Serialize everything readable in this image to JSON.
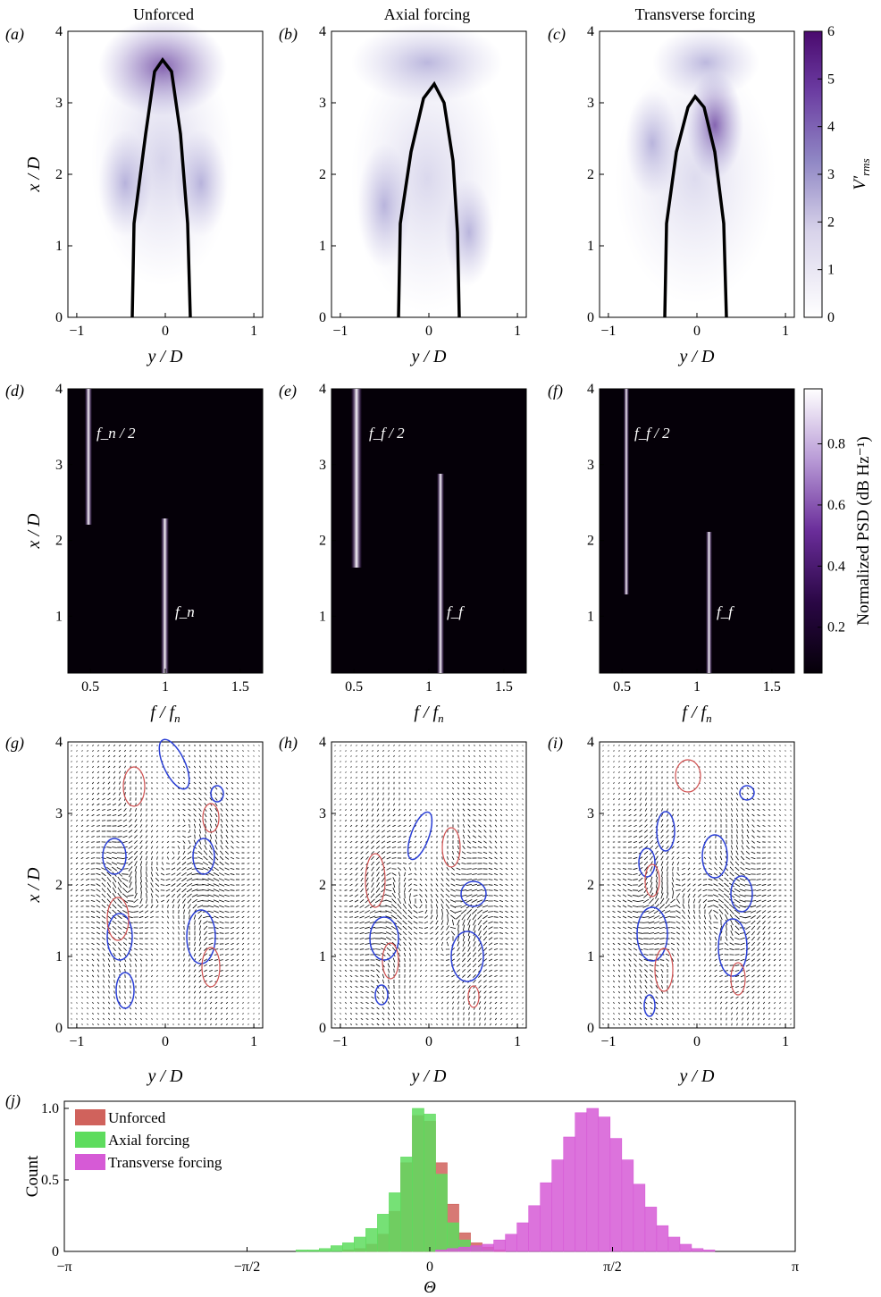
{
  "panel_letters": {
    "a": "(a)",
    "b": "(b)",
    "c": "(c)",
    "d": "(d)",
    "e": "(e)",
    "f": "(f)",
    "g": "(g)",
    "h": "(h)",
    "i": "(i)",
    "j": "(j)"
  },
  "row_titles": [
    "Unforced",
    "Axial forcing",
    "Transverse forcing"
  ],
  "labels": {
    "xD": "x / D",
    "yD": "y / D",
    "ffn": "f / f_n",
    "count": "Count",
    "theta": "Θ",
    "vrms_main": "V′",
    "vrms_sub": "rms",
    "psd": "Normalized PSD (dB Hz⁻¹)",
    "fn_half": "f_n / 2",
    "ff_half": "f_f / 2",
    "fn": "f_n",
    "ff": "f_f"
  },
  "colors": {
    "purple_max": "#4a0a6e",
    "unforced": "#d0625c",
    "axial": "#5edc5e",
    "transverse": "#d65ad6",
    "blue_contour": "#2a3fd6",
    "red_contour": "#d05050"
  },
  "chart_data": [
    {
      "panel": "a-c",
      "type": "heatmap",
      "series_titles": [
        "Unforced",
        "Axial forcing",
        "Transverse forcing"
      ],
      "xlabel": "y / D",
      "ylabel": "x / D",
      "xlim": [
        -1.1,
        1.1
      ],
      "ylim": [
        0,
        4
      ],
      "xticks": [
        -1,
        0,
        1
      ],
      "yticks": [
        0,
        1,
        2,
        3,
        4
      ],
      "colorbar": {
        "label": "V'_rms",
        "range": [
          0,
          6
        ],
        "ticks": [
          0,
          1,
          2,
          3,
          4,
          5,
          6
        ]
      },
      "contour_tip_xD": [
        3.6,
        3.3,
        3.1
      ],
      "contour_base_yD": [
        [
          -0.32,
          0.32
        ],
        [
          -0.3,
          0.35
        ],
        [
          -0.35,
          0.32
        ]
      ]
    },
    {
      "panel": "d-f",
      "type": "heatmap",
      "xlabel": "f / f_n",
      "ylabel": "x / D",
      "xlim": [
        0.35,
        1.65
      ],
      "ylim": [
        0.25,
        4
      ],
      "xticks": [
        0.5,
        1.0,
        1.5
      ],
      "yticks": [
        1,
        2,
        3,
        4
      ],
      "colorbar": {
        "label": "Normalized PSD (dB Hz^-1)",
        "ticks": [
          0.2,
          0.4,
          0.6,
          0.8
        ]
      },
      "peaks": [
        {
          "subharmonic_f": 0.5,
          "subharmonic_x_from": 2.2,
          "fundamental_f": 1.0,
          "fundamental_x_to": 2.6
        },
        {
          "subharmonic_f": 0.55,
          "subharmonic_x_from": 1.6,
          "fundamental_f": 1.1,
          "fundamental_x_to": 3.0
        },
        {
          "subharmonic_f": 0.55,
          "subharmonic_x_from": 1.2,
          "fundamental_f": 1.1,
          "fundamental_x_to": 2.0
        }
      ]
    },
    {
      "panel": "g-i",
      "type": "scatter",
      "description_free": true,
      "xlabel": "y / D",
      "ylabel": "x / D",
      "xlim": [
        -1.1,
        1.1
      ],
      "ylim": [
        0,
        4
      ],
      "xticks": [
        -1,
        0,
        1
      ],
      "yticks": [
        0,
        1,
        2,
        3,
        4
      ]
    },
    {
      "panel": "j",
      "type": "bar",
      "xlabel": "Θ",
      "ylabel": "Count",
      "xlim": [
        -3.1416,
        3.1416
      ],
      "ylim": [
        0,
        1.0
      ],
      "xtick_labels": [
        "−π",
        "−π/2",
        "0",
        "π/2",
        "π"
      ],
      "yticks": [
        0,
        0.5,
        1.0
      ],
      "legend_position": "top-left",
      "bin_centers": [
        -1.1,
        -1.0,
        -0.9,
        -0.8,
        -0.7,
        -0.6,
        -0.5,
        -0.4,
        -0.3,
        -0.2,
        -0.1,
        0.0,
        0.1,
        0.2,
        0.3,
        0.4,
        0.5,
        0.6,
        0.7,
        0.8,
        0.9,
        1.0,
        1.1,
        1.2,
        1.3,
        1.4,
        1.5,
        1.6,
        1.7,
        1.8,
        1.9,
        2.0,
        2.1,
        2.2,
        2.3,
        2.4,
        2.5
      ],
      "series": [
        {
          "name": "Unforced",
          "values": [
            0,
            0,
            0,
            0,
            0.01,
            0.02,
            0.05,
            0.12,
            0.28,
            0.62,
            0.95,
            0.91,
            0.62,
            0.33,
            0.13,
            0.06,
            0.03,
            0.01,
            0,
            0,
            0,
            0,
            0,
            0,
            0,
            0,
            0,
            0,
            0,
            0,
            0,
            0,
            0,
            0,
            0,
            0,
            0
          ]
        },
        {
          "name": "Axial forcing",
          "values": [
            0.01,
            0.01,
            0.02,
            0.04,
            0.06,
            0.1,
            0.16,
            0.26,
            0.41,
            0.66,
            1.0,
            0.96,
            0.54,
            0.2,
            0.08,
            0.03,
            0.01,
            0,
            0,
            0,
            0,
            0,
            0,
            0,
            0,
            0,
            0,
            0,
            0,
            0,
            0,
            0,
            0,
            0,
            0,
            0,
            0
          ]
        },
        {
          "name": "Transverse forcing",
          "values": [
            0,
            0,
            0,
            0,
            0,
            0,
            0,
            0,
            0,
            0,
            0,
            0,
            0.01,
            0.02,
            0.03,
            0.04,
            0.05,
            0.08,
            0.12,
            0.2,
            0.32,
            0.48,
            0.64,
            0.8,
            0.97,
            1.0,
            0.94,
            0.79,
            0.64,
            0.47,
            0.31,
            0.18,
            0.1,
            0.05,
            0.02,
            0.01,
            0
          ]
        }
      ]
    }
  ]
}
